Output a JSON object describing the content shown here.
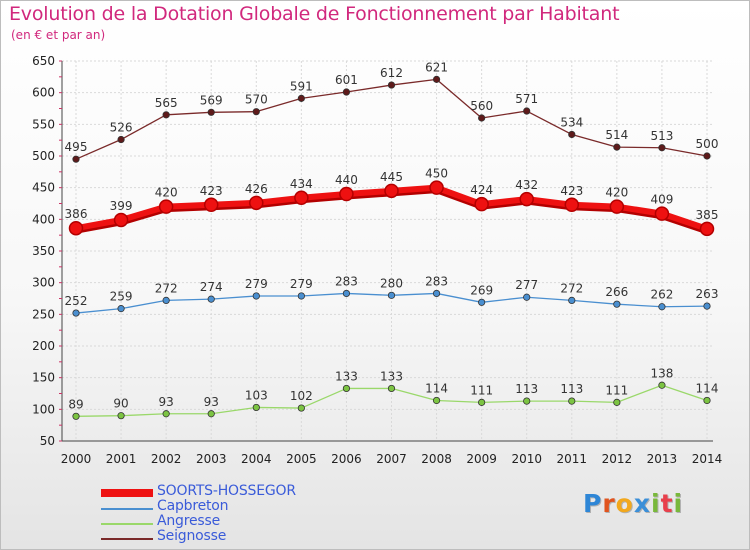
{
  "title": "Evolution de la Dotation Globale de Fonctionnement par Habitant",
  "subtitle": "(en € et par an)",
  "logo": {
    "text": "Proxiti",
    "letters": [
      {
        "ch": "P",
        "color": "#2e86d6"
      },
      {
        "ch": "r",
        "color": "#e0541e"
      },
      {
        "ch": "o",
        "color": "#f2a81d"
      },
      {
        "ch": "x",
        "color": "#3b8fd8"
      },
      {
        "ch": "i",
        "color": "#79b83b"
      },
      {
        "ch": "t",
        "color": "#e8404c"
      },
      {
        "ch": "i",
        "color": "#79b83b"
      }
    ]
  },
  "chart_data": {
    "type": "line",
    "title": "Evolution de la Dotation Globale de Fonctionnement par Habitant",
    "subtitle": "(en € et par an)",
    "xlabel": "",
    "ylabel": "",
    "ylim": [
      50,
      650
    ],
    "yticks": [
      50,
      100,
      150,
      200,
      250,
      300,
      350,
      400,
      450,
      500,
      550,
      600,
      650
    ],
    "grid": true,
    "legend_position": "bottom-left",
    "x": [
      "2000",
      "2001",
      "2002",
      "2003",
      "2004",
      "2005",
      "2006",
      "2007",
      "2008",
      "2009",
      "2010",
      "2011",
      "2012",
      "2013",
      "2014"
    ],
    "series": [
      {
        "name": "SOORTS-HOSSEGOR",
        "color": "#ee1111",
        "style": "bold",
        "values": [
          386,
          399,
          420,
          423,
          426,
          434,
          440,
          445,
          450,
          424,
          432,
          423,
          420,
          409,
          385
        ]
      },
      {
        "name": "Capbreton",
        "color": "#4a8fd0",
        "marker": "#4a8fd0",
        "values": [
          252,
          259,
          272,
          274,
          279,
          279,
          283,
          280,
          283,
          269,
          277,
          272,
          266,
          262,
          263
        ]
      },
      {
        "name": "Angresse",
        "color": "#9ad86a",
        "marker": "#7cc442",
        "values": [
          89,
          90,
          93,
          93,
          103,
          102,
          133,
          133,
          114,
          111,
          113,
          113,
          111,
          138,
          114
        ]
      },
      {
        "name": "Seignosse",
        "color": "#7a2a2a",
        "marker": "#5e1a1a",
        "values": [
          495,
          526,
          565,
          569,
          570,
          591,
          601,
          612,
          621,
          560,
          571,
          534,
          514,
          513,
          500
        ]
      }
    ]
  }
}
